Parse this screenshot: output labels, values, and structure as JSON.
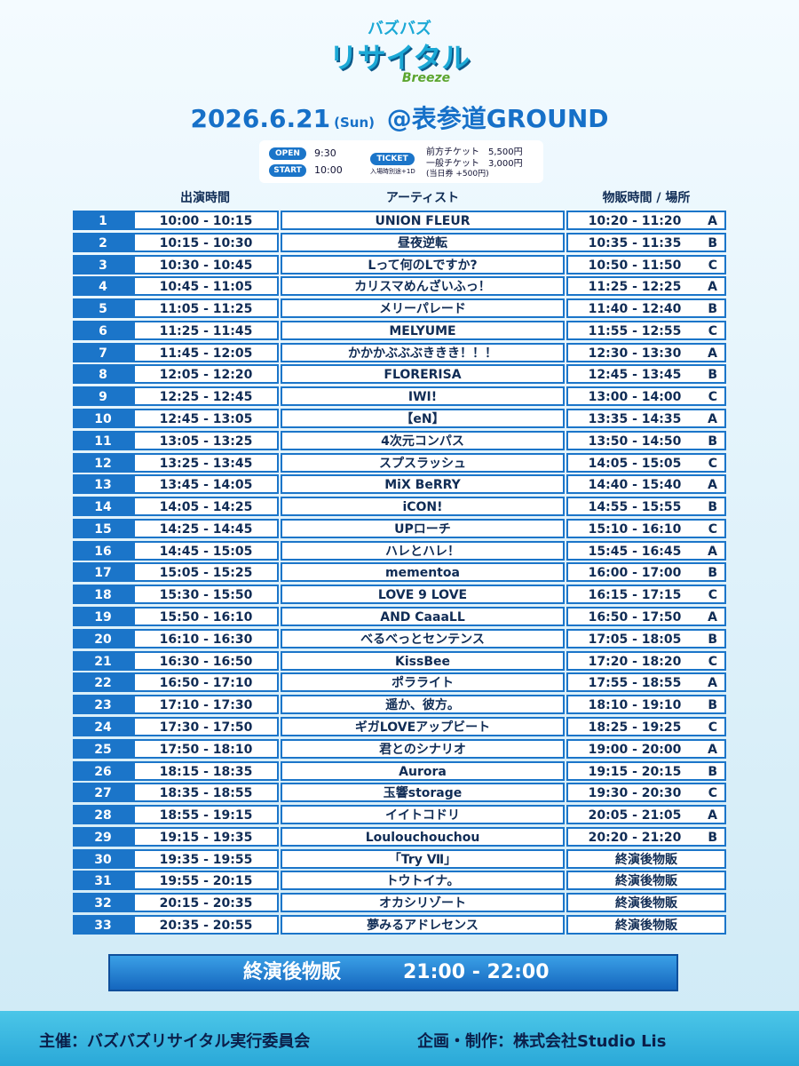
{
  "header": {
    "logo_top": "バズバズ",
    "logo_main": "リサイタル",
    "logo_sub": "Breeze",
    "date": "2026.6.21",
    "weekday": "(Sun)",
    "venue": "@表参道GROUND"
  },
  "info": {
    "open_label": "OPEN",
    "open_time": "9:30",
    "start_label": "START",
    "start_time": "10:00",
    "ticket_label": "TICKET",
    "ticket_note": "入場時別途+1D",
    "prices": [
      "前方チケット　5,500円",
      "一般チケット　3,000円",
      "(当日券 +500円)"
    ]
  },
  "table": {
    "columns": [
      "出演時間",
      "アーティスト",
      "物販時間 / 場所"
    ],
    "rows": [
      [
        "1",
        "10:00 - 10:15",
        "UNION FLEUR",
        "10:20 - 11:20",
        "A"
      ],
      [
        "2",
        "10:15 - 10:30",
        "昼夜逆転",
        "10:35 - 11:35",
        "B"
      ],
      [
        "3",
        "10:30 - 10:45",
        "Lって何のLですか?",
        "10:50 - 11:50",
        "C"
      ],
      [
        "4",
        "10:45 - 11:05",
        "カリスマめんざいふっ！",
        "11:25 - 12:25",
        "A"
      ],
      [
        "5",
        "11:05 - 11:25",
        "メリーパレード",
        "11:40 - 12:40",
        "B"
      ],
      [
        "6",
        "11:25 - 11:45",
        "MELYUME",
        "11:55 - 12:55",
        "C"
      ],
      [
        "7",
        "11:45 - 12:05",
        "かかかぶぶぶききき！！！",
        "12:30 - 13:30",
        "A"
      ],
      [
        "8",
        "12:05 - 12:20",
        "FLORERISA",
        "12:45 - 13:45",
        "B"
      ],
      [
        "9",
        "12:25 - 12:45",
        "IWI!",
        "13:00 - 14:00",
        "C"
      ],
      [
        "10",
        "12:45 - 13:05",
        "【eN】",
        "13:35 - 14:35",
        "A"
      ],
      [
        "11",
        "13:05 - 13:25",
        "4次元コンパス",
        "13:50 - 14:50",
        "B"
      ],
      [
        "12",
        "13:25 - 13:45",
        "スプスラッシュ",
        "14:05 - 15:05",
        "C"
      ],
      [
        "13",
        "13:45 - 14:05",
        "MiX BeRRY",
        "14:40 - 15:40",
        "A"
      ],
      [
        "14",
        "14:05 - 14:25",
        "iCON!",
        "14:55 - 15:55",
        "B"
      ],
      [
        "15",
        "14:25 - 14:45",
        "UPローチ",
        "15:10 - 16:10",
        "C"
      ],
      [
        "16",
        "14:45 - 15:05",
        "ハレとハレ！",
        "15:45 - 16:45",
        "A"
      ],
      [
        "17",
        "15:05 - 15:25",
        "mementoa",
        "16:00 - 17:00",
        "B"
      ],
      [
        "18",
        "15:30 - 15:50",
        "LOVE 9 LOVE",
        "16:15 - 17:15",
        "C"
      ],
      [
        "19",
        "15:50 - 16:10",
        "AND CaaaLL",
        "16:50 - 17:50",
        "A"
      ],
      [
        "20",
        "16:10 - 16:30",
        "べるべっとセンテンス",
        "17:05 - 18:05",
        "B"
      ],
      [
        "21",
        "16:30 - 16:50",
        "KissBee",
        "17:20 - 18:20",
        "C"
      ],
      [
        "22",
        "16:50 - 17:10",
        "ポラライト",
        "17:55 - 18:55",
        "A"
      ],
      [
        "23",
        "17:10 - 17:30",
        "遥か、彼方。",
        "18:10 - 19:10",
        "B"
      ],
      [
        "24",
        "17:30 - 17:50",
        "ギガLOVEアップビート",
        "18:25 - 19:25",
        "C"
      ],
      [
        "25",
        "17:50 - 18:10",
        "君とのシナリオ",
        "19:00 - 20:00",
        "A"
      ],
      [
        "26",
        "18:15 - 18:35",
        "Aurora",
        "19:15 - 20:15",
        "B"
      ],
      [
        "27",
        "18:35 - 18:55",
        "玉響storage",
        "19:30 - 20:30",
        "C"
      ],
      [
        "28",
        "18:55 - 19:15",
        "イイトコドリ",
        "20:05 - 21:05",
        "A"
      ],
      [
        "29",
        "19:15 - 19:35",
        "Loulouchouchou",
        "20:20 - 21:20",
        "B"
      ],
      [
        "30",
        "19:35 - 19:55",
        "「Try Ⅶ」",
        "終演後物販"
      ],
      [
        "31",
        "19:55 - 20:15",
        "トウトイナ。",
        "終演後物販"
      ],
      [
        "32",
        "20:15 - 20:35",
        "オカシリゾート",
        "終演後物販"
      ],
      [
        "33",
        "20:35 - 20:55",
        "夢みるアドレセンス",
        "終演後物販"
      ]
    ]
  },
  "footer_merch": {
    "label": "終演後物販",
    "time": "21:00 - 22:00"
  },
  "credits": {
    "organizer": "主催：バズバズリサイタル実行委員会",
    "production": "企画・制作：株式会社Studio Lis"
  }
}
